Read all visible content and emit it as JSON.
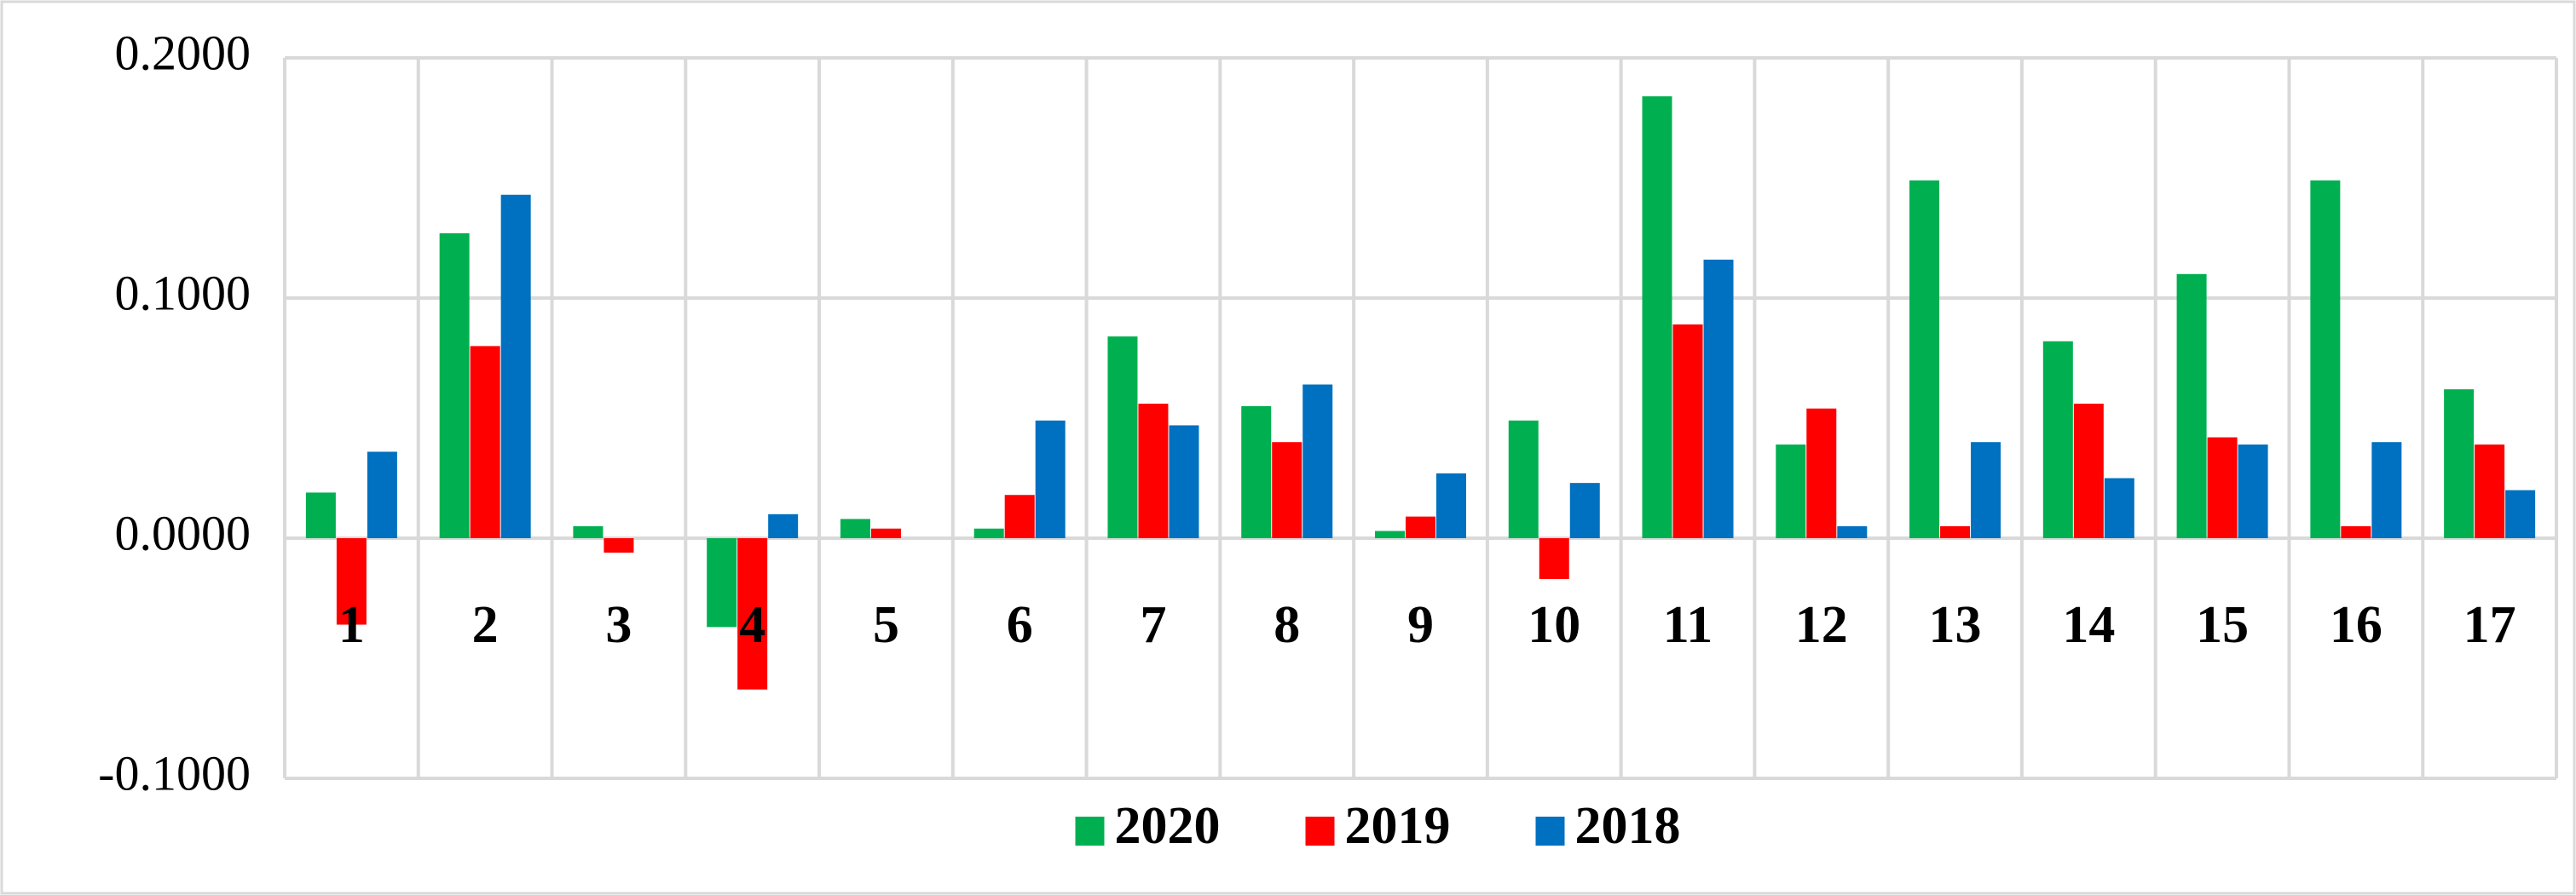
{
  "chart_data": {
    "type": "bar",
    "categories": [
      "1",
      "2",
      "3",
      "4",
      "5",
      "6",
      "7",
      "8",
      "9",
      "10",
      "11",
      "12",
      "13",
      "14",
      "15",
      "16",
      "17"
    ],
    "series": [
      {
        "name": "2020",
        "color": "#00b050",
        "values": [
          0.019,
          0.127,
          0.005,
          -0.037,
          0.008,
          0.004,
          0.084,
          0.055,
          0.003,
          0.049,
          0.184,
          0.039,
          0.149,
          0.082,
          0.11,
          0.149,
          0.062
        ]
      },
      {
        "name": "2019",
        "color": "#ff0000",
        "values": [
          -0.036,
          0.08,
          -0.006,
          -0.063,
          0.004,
          0.018,
          0.056,
          0.04,
          0.009,
          -0.017,
          0.089,
          0.054,
          0.005,
          0.056,
          0.042,
          0.005,
          0.039
        ]
      },
      {
        "name": "2018",
        "color": "#0070c0",
        "values": [
          0.036,
          0.143,
          0,
          0.01,
          0,
          0.049,
          0.047,
          0.064,
          0.027,
          0.023,
          0.116,
          0.005,
          0.04,
          0.025,
          0.039,
          0.04,
          0.02
        ]
      }
    ],
    "ylim": [
      -0.1,
      0.2
    ],
    "yticks": [
      {
        "value": -0.1,
        "label": "-0.1000"
      },
      {
        "value": 0,
        "label": "0.0000"
      },
      {
        "value": 0.1,
        "label": "0.1000"
      },
      {
        "value": 0.2,
        "label": "0.2000"
      }
    ],
    "grid": true,
    "legend": "bottom"
  }
}
